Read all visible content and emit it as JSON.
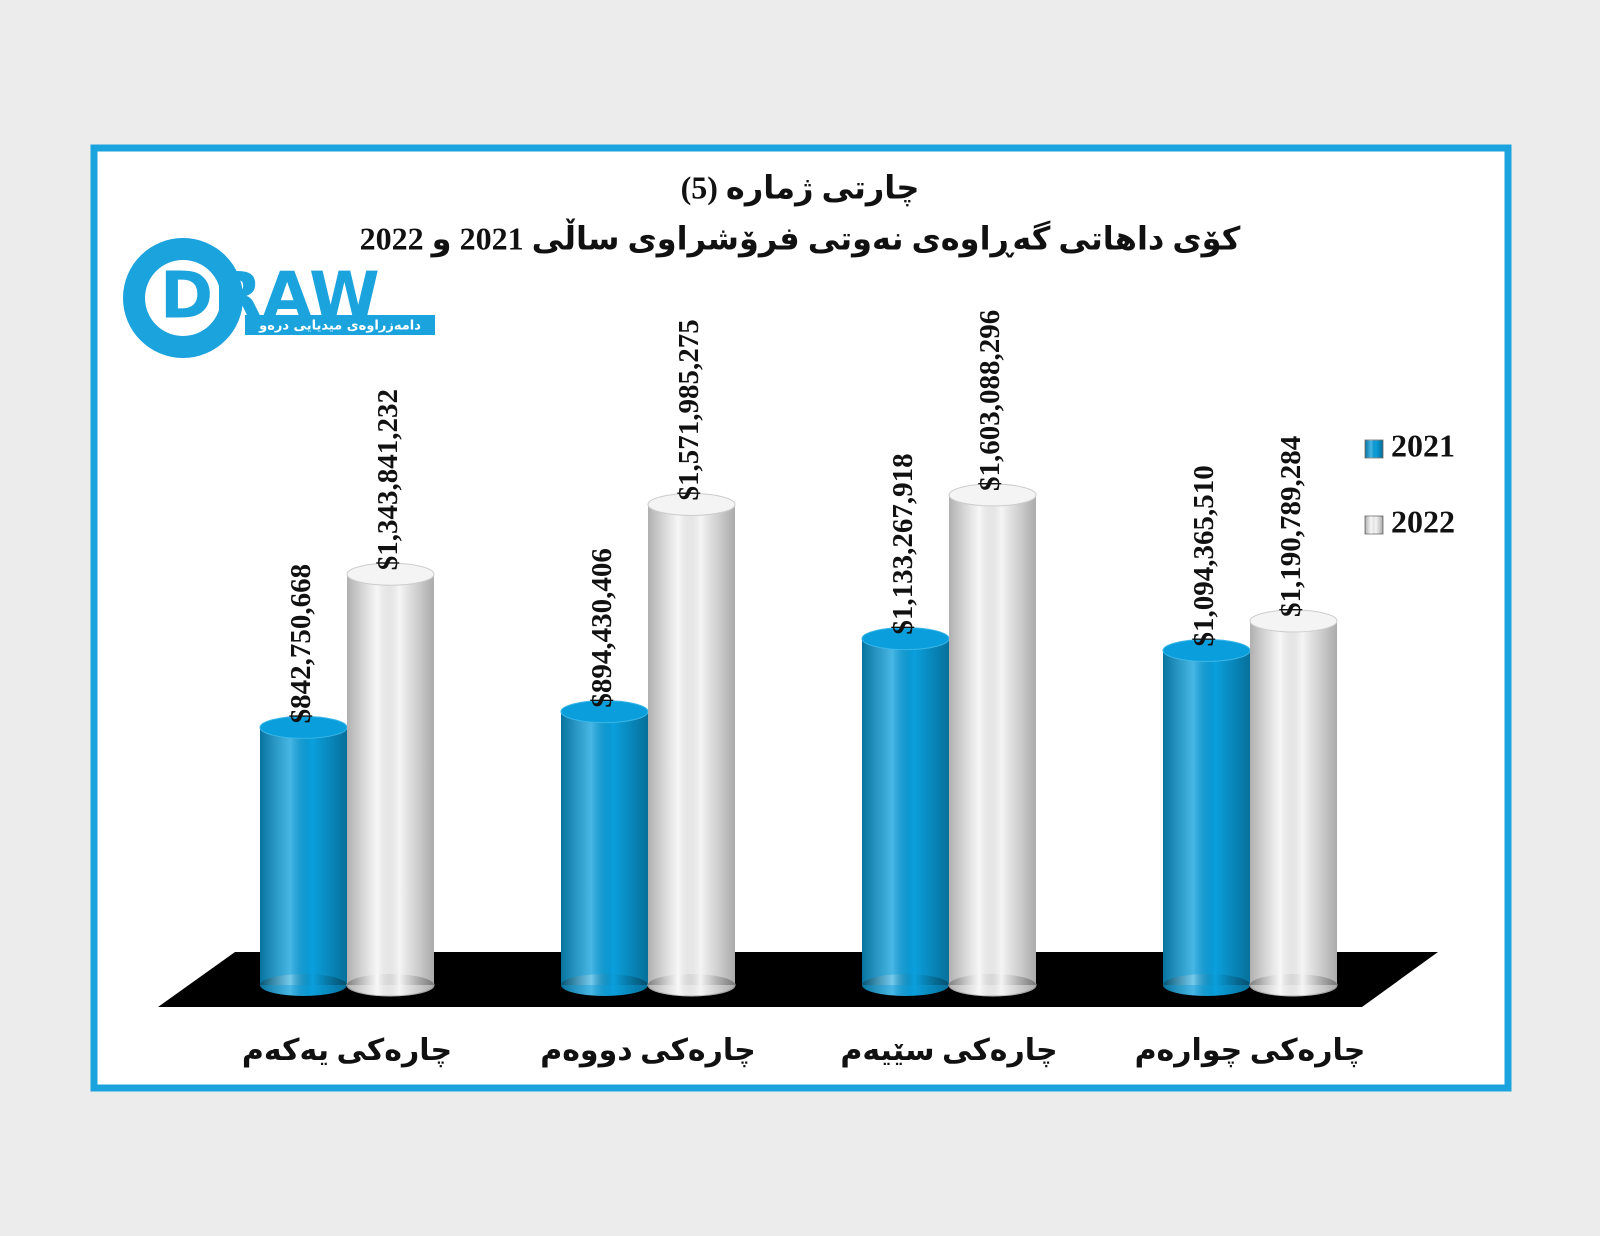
{
  "logo": {
    "name": "DRAW",
    "tagline": "دامەزراوەی میدیایی درەو"
  },
  "chart_data": {
    "type": "bar",
    "title": "چارتی ژمارە (5)",
    "subtitle": "کۆی داهاتی گەڕاوەی نەوتی فرۆشراوی ساڵی 2021 و 2022",
    "categories": [
      "چارەکی یەکەم",
      "چارەکی دووەم",
      "چارەکی سێیەم",
      "چارەکی چوارەم"
    ],
    "series": [
      {
        "name": "2021",
        "color": "#0a9fdc",
        "values": [
          842750668,
          894430406,
          1133267918,
          1094365510
        ],
        "value_labels": [
          "$842,750,668",
          "$894,430,406",
          "$1,133,267,918",
          "$1,094,365,510"
        ]
      },
      {
        "name": "2022",
        "color": "#f4f4f4",
        "values": [
          1343841232,
          1571985275,
          1603088296,
          1190789284
        ],
        "value_labels": [
          "$1,343,841,232",
          "$1,571,985,275",
          "$1,603,088,296",
          "$1,190,789,284"
        ]
      }
    ],
    "legend": "right"
  }
}
